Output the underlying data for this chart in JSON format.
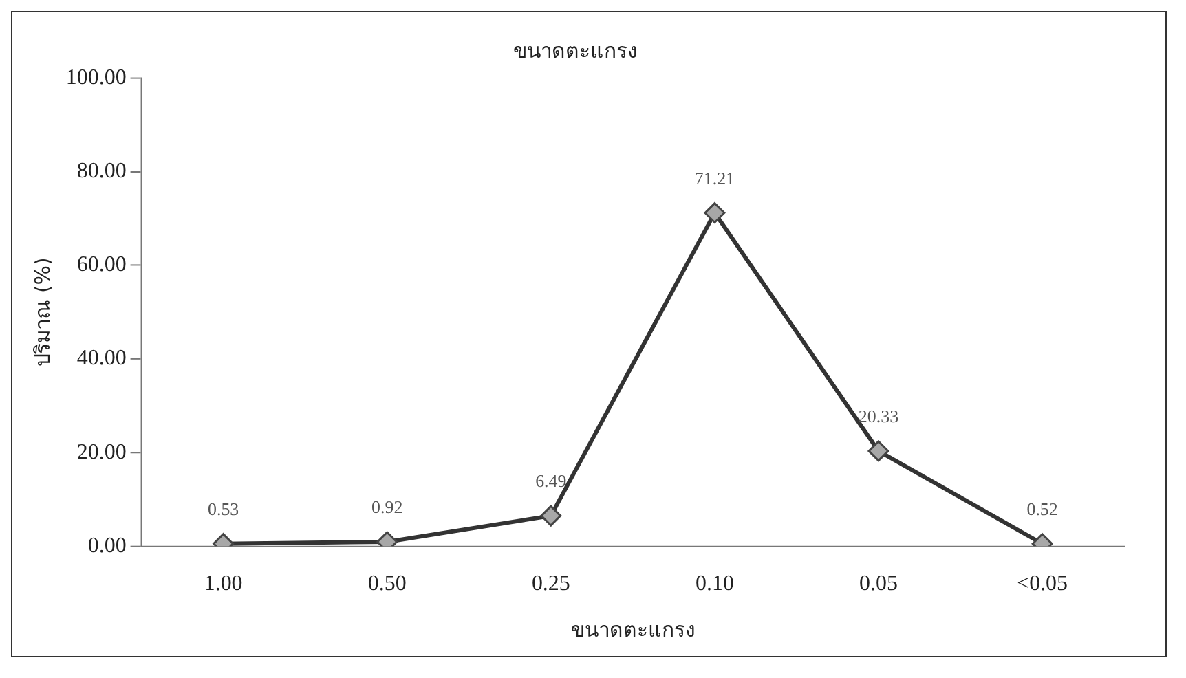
{
  "chart_data": {
    "type": "line",
    "title": "ขนาดตะแกรง",
    "xlabel": "ขนาดตะแกรง",
    "ylabel": "ปริมาณ (%)",
    "categories": [
      "1.00",
      "0.50",
      "0.25",
      "0.10",
      "0.05",
      "<0.05"
    ],
    "series": [
      {
        "color": "#333333",
        "values": [
          0.53,
          0.92,
          6.49,
          71.21,
          20.33,
          0.52
        ]
      }
    ],
    "ylim": [
      0,
      100
    ],
    "yticks": [
      {
        "value": 0,
        "label": "0.00"
      },
      {
        "value": 20,
        "label": "20.00"
      },
      {
        "value": 40,
        "label": "40.00"
      },
      {
        "value": 60,
        "label": "60.00"
      },
      {
        "value": 80,
        "label": "80.00"
      },
      {
        "value": 100,
        "label": "100.00"
      }
    ],
    "grid": false,
    "legend": false,
    "marker": "diamond",
    "line_style": "solid",
    "data_labels": true
  }
}
